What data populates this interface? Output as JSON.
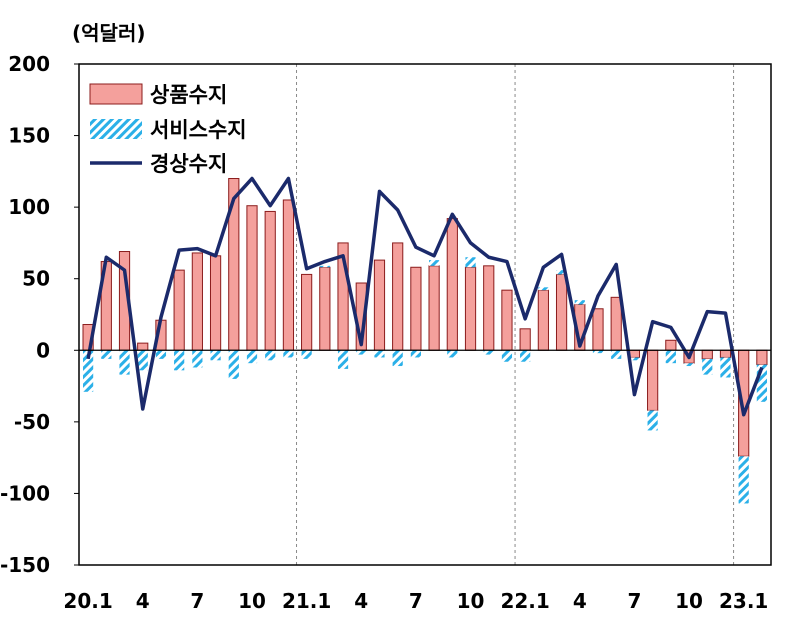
{
  "chart_data": {
    "type": "bar",
    "unit_label": "(억달러)",
    "title": "",
    "xlabel": "",
    "ylabel": "",
    "ylim": [
      -150,
      200
    ],
    "y_ticks": [
      200,
      150,
      100,
      50,
      0,
      -50,
      -100,
      -150
    ],
    "x_tick_labels": [
      "20.1",
      "4",
      "7",
      "10",
      "21.1",
      "4",
      "7",
      "10",
      "22.1",
      "4",
      "7",
      "10",
      "23.1"
    ],
    "x_tick_months": [
      0,
      3,
      6,
      9,
      12,
      15,
      18,
      21,
      24,
      27,
      30,
      33,
      36
    ],
    "year_dividers": [
      12,
      24,
      36
    ],
    "legend": {
      "position": "top-left",
      "entries": [
        "상품수지",
        "서비스수지",
        "경상수지"
      ]
    },
    "colors": {
      "goods": "#f4a09c",
      "goods_border": "#8b1c1c",
      "services": "#2bb0e8",
      "current": "#1b2a6b",
      "divider": "#8a8a8a"
    },
    "months": [
      "2020.1",
      "2020.2",
      "2020.3",
      "2020.4",
      "2020.5",
      "2020.6",
      "2020.7",
      "2020.8",
      "2020.9",
      "2020.10",
      "2020.11",
      "2020.12",
      "2021.1",
      "2021.2",
      "2021.3",
      "2021.4",
      "2021.5",
      "2021.6",
      "2021.7",
      "2021.8",
      "2021.9",
      "2021.10",
      "2021.11",
      "2021.12",
      "2022.1",
      "2022.2",
      "2022.3",
      "2022.4",
      "2022.5",
      "2022.6",
      "2022.7",
      "2022.8",
      "2022.9",
      "2022.10",
      "2022.11",
      "2022.12",
      "2023.1",
      "2023.2"
    ],
    "series": [
      {
        "name": "상품수지",
        "kind": "bar",
        "values": [
          18,
          62,
          69,
          5,
          21,
          56,
          68,
          66,
          120,
          101,
          97,
          105,
          53,
          58,
          75,
          47,
          63,
          75,
          58,
          59,
          92,
          58,
          59,
          42,
          15,
          42,
          53,
          32,
          29,
          37,
          -5,
          -42,
          7,
          -9,
          -6,
          -5,
          -74,
          -10
        ]
      },
      {
        "name": "서비스수지",
        "kind": "bar_hatched",
        "values": [
          -29,
          -6,
          -17,
          -14,
          -6,
          -14,
          -12,
          -7,
          -20,
          -9,
          -7,
          -5,
          -6,
          1,
          -13,
          -3,
          -5,
          -11,
          -5,
          4,
          -5,
          7,
          -3,
          -8,
          -8,
          2,
          3,
          3,
          -2,
          -6,
          -2,
          -14,
          -9,
          -2,
          -11,
          -14,
          -33,
          -26
        ]
      },
      {
        "name": "경상수지",
        "kind": "line",
        "values": [
          -6,
          65,
          56,
          -41,
          23,
          70,
          71,
          66,
          106,
          120,
          101,
          120,
          57,
          62,
          66,
          4,
          111,
          98,
          72,
          66,
          95,
          75,
          65,
          62,
          22,
          58,
          67,
          3,
          38,
          60,
          -31,
          20,
          16,
          -5,
          27,
          26,
          -45,
          -12
        ]
      }
    ]
  }
}
